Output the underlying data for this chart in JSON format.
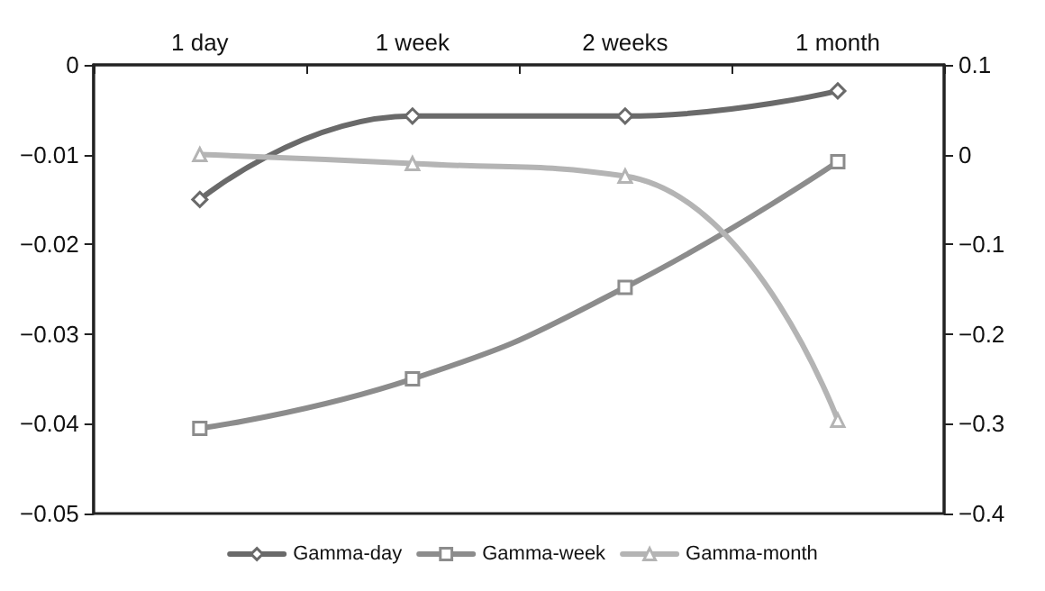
{
  "chart_data": {
    "type": "line",
    "categories": [
      "1 day",
      "1 week",
      "2 weeks",
      "1 month"
    ],
    "series": [
      {
        "name": "Gamma-day",
        "color": "#6a6a6a",
        "marker": "diamond",
        "values": [
          -0.015,
          -0.0057,
          -0.0057,
          -0.0029
        ]
      },
      {
        "name": "Gamma-week",
        "color": "#8c8c8c",
        "marker": "square",
        "values": [
          -0.0405,
          -0.035,
          -0.0248,
          -0.0108
        ]
      },
      {
        "name": "Gamma-month",
        "color": "#b4b4b4",
        "marker": "triangle",
        "axis": "y2",
        "values": [
          0,
          -0.01,
          -0.024,
          -0.296
        ]
      }
    ],
    "ylim": [
      -0.05,
      0
    ],
    "yticks": [
      {
        "value": -0.05,
        "label": "−0.05"
      },
      {
        "value": -0.04,
        "label": "−0.04"
      },
      {
        "value": -0.03,
        "label": "−0.03"
      },
      {
        "value": -0.02,
        "label": "−0.02"
      },
      {
        "value": -0.01,
        "label": "−0.01"
      },
      0
    ],
    "y2lim": [
      -0.4,
      0.1
    ],
    "y2ticks": [
      {
        "value": -0.4,
        "label": "−0.4"
      },
      {
        "value": -0.3,
        "label": "−0.3"
      },
      {
        "value": -0.2,
        "label": "−0.2"
      },
      {
        "value": -0.1,
        "label": "−0.1"
      },
      0,
      0.1
    ],
    "grid": false,
    "legend": "bottom"
  }
}
